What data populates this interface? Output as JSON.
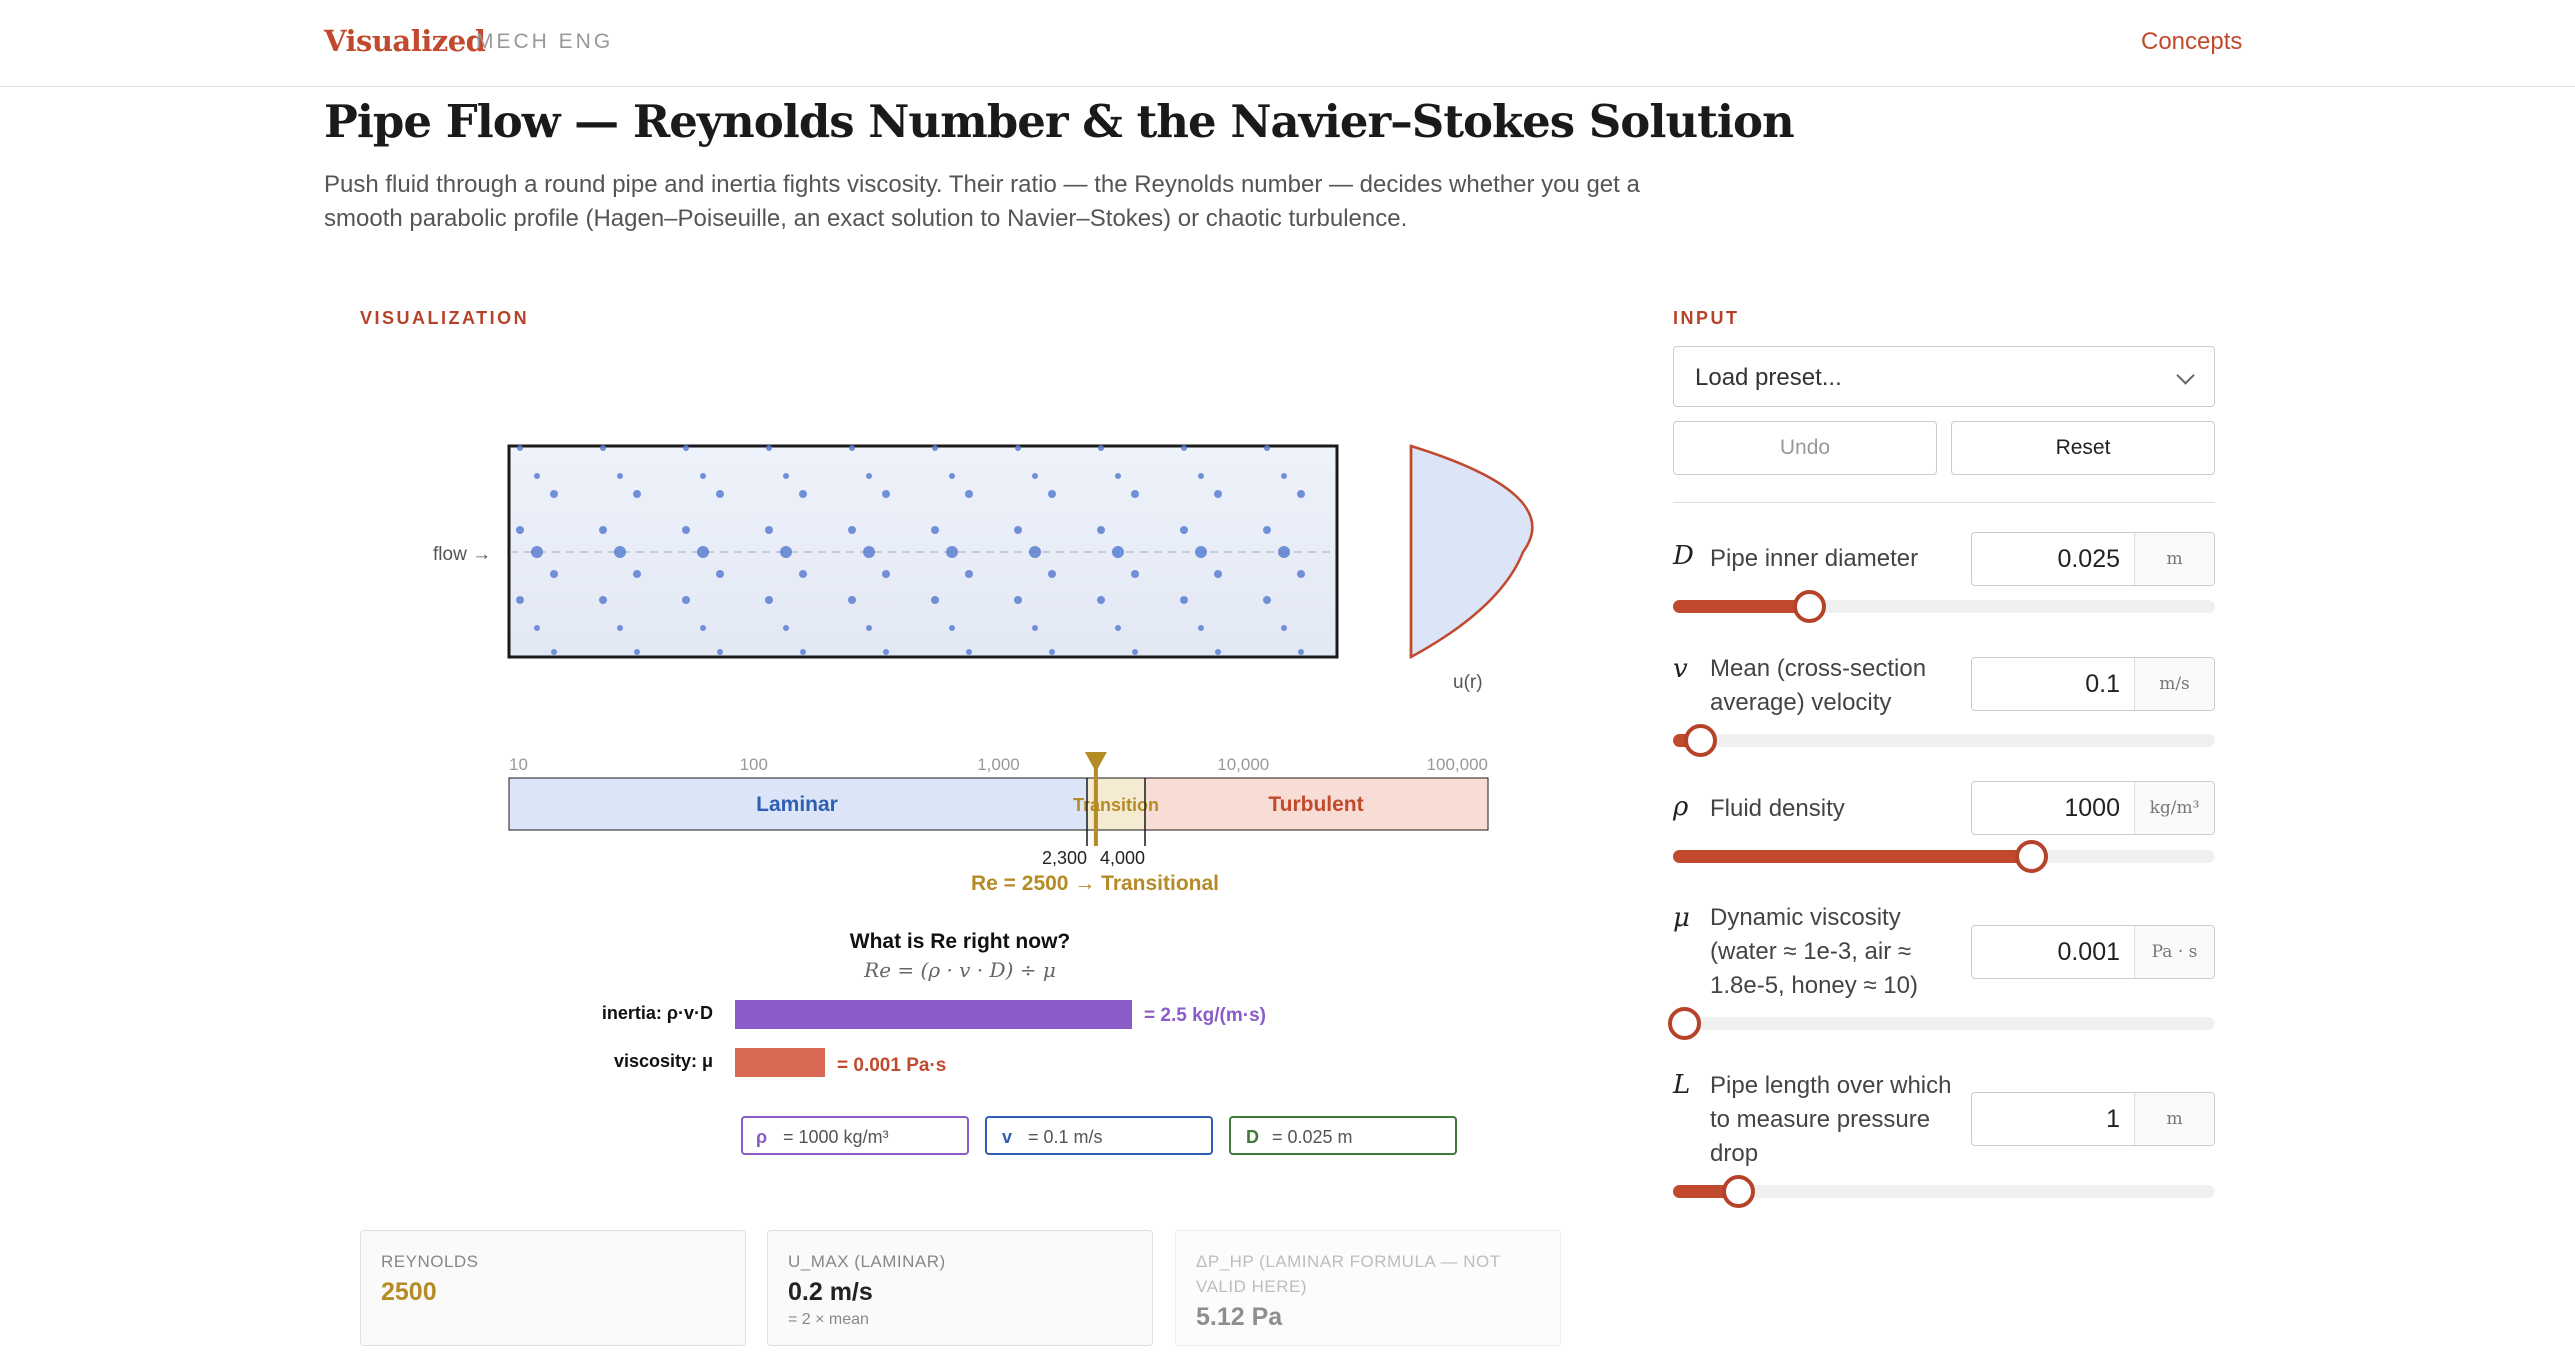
{
  "header": {
    "brand": "Visualized",
    "brand_sub": "MECH ENG",
    "nav_concepts": "Concepts"
  },
  "page": {
    "title": "Pipe Flow — Reynolds Number & the Navier–Stokes Solution",
    "description": "Push fluid through a round pipe and inertia fights viscosity. Their ratio — the Reynolds number — decides whether you get a smooth parabolic profile (Hagen–Poiseuille, an exact solution to Navier–Stokes) or chaotic turbulence."
  },
  "viz": {
    "section_label": "VISUALIZATION",
    "flow_label": "flow →",
    "profile_label": "u(r)",
    "scale": {
      "ticks": [
        "10",
        "100",
        "1,000",
        "10,000",
        "100,000"
      ],
      "regions": {
        "laminar": "Laminar",
        "transition": "Transition",
        "turbulent": "Turbulent"
      },
      "bounds": [
        "2,300",
        "4,000"
      ],
      "current_re": 2500,
      "readout": "Re = 2500 → Transitional"
    },
    "formula": {
      "title": "What is Re right now?",
      "expr": "Re = (ρ · v · D) ÷ μ",
      "inertia_label": "inertia: ρ·v·D",
      "inertia_value": "= 2.5 kg/(m·s)",
      "viscosity_label": "viscosity: μ",
      "viscosity_value": "= 0.001 Pa·s"
    },
    "chips": [
      {
        "sym": "ρ",
        "text": "= 1000 kg/m³"
      },
      {
        "sym": "v",
        "text": "= 0.1 m/s"
      },
      {
        "sym": "D",
        "text": "= 0.025 m"
      }
    ],
    "colors": {
      "laminar": "#2f5fb3",
      "transition": "#b58b25",
      "turbulent": "#c14a2e",
      "inertia": "#8a5cc8",
      "viscosity": "#d86a55"
    }
  },
  "stats": [
    {
      "label": "REYNOLDS",
      "value": "2500",
      "sub": ""
    },
    {
      "label": "U_MAX (LAMINAR)",
      "value": "0.2 m/s",
      "sub": "= 2 × mean"
    },
    {
      "label": "ΔP_HP (LAMINAR FORMULA — NOT VALID HERE)",
      "value": "5.12 Pa",
      "sub": ""
    }
  ],
  "input": {
    "section_label": "INPUT",
    "preset_placeholder": "Load preset...",
    "undo_label": "Undo",
    "reset_label": "Reset",
    "params": [
      {
        "sym": "D",
        "label": "Pipe inner diameter",
        "value": "0.025",
        "unit": "m",
        "slider_fraction": 0.25
      },
      {
        "sym": "v",
        "label": "Mean (cross-section average) velocity",
        "value": "0.1",
        "unit": "m/s",
        "slider_fraction": 0.05
      },
      {
        "sym": "ρ",
        "label": "Fluid density",
        "value": "1000",
        "unit": "kg/m³",
        "slider_fraction": 0.66
      },
      {
        "sym": "μ",
        "label": "Dynamic viscosity (water ≈ 1e-3, air ≈ 1.8e-5, honey ≈ 10)",
        "value": "0.001",
        "unit": "Pa · s",
        "slider_fraction": 0.02
      },
      {
        "sym": "L",
        "label": "Pipe length over which to measure pressure drop",
        "value": "1",
        "unit": "m",
        "slider_fraction": 0.12
      }
    ]
  }
}
